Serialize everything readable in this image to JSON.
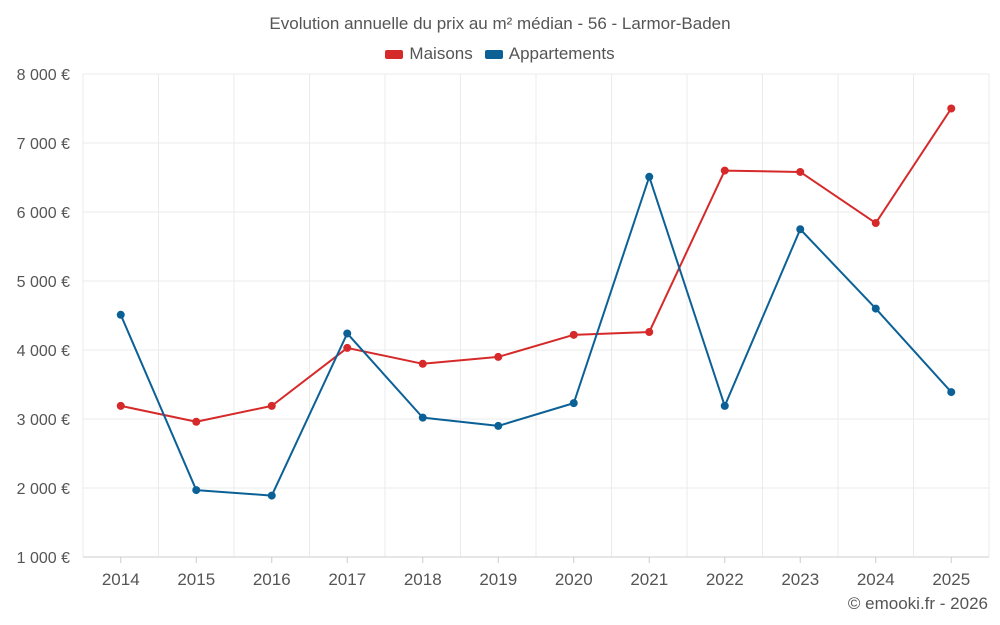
{
  "chart_data": {
    "type": "line",
    "title": "Evolution annuelle du prix au m² médian - 56 - Larmor-Baden",
    "categories": [
      "2014",
      "2015",
      "2016",
      "2017",
      "2018",
      "2019",
      "2020",
      "2021",
      "2022",
      "2023",
      "2024",
      "2025"
    ],
    "series": [
      {
        "name": "Maisons",
        "color": "#d62a2a",
        "values": [
          3190,
          2960,
          3190,
          4030,
          3800,
          3900,
          4220,
          4260,
          6600,
          6580,
          5840,
          7500
        ]
      },
      {
        "name": "Appartements",
        "color": "#0b6196",
        "values": [
          4510,
          1970,
          1890,
          4240,
          3020,
          2900,
          3230,
          6510,
          3190,
          5750,
          4600,
          3390
        ]
      }
    ],
    "ylim": [
      1000,
      8000
    ],
    "yticks": [
      1000,
      2000,
      3000,
      4000,
      5000,
      6000,
      7000,
      8000
    ],
    "ytick_labels": [
      "1 000 €",
      "2 000 €",
      "3 000 €",
      "4 000 €",
      "5 000 €",
      "6 000 €",
      "7 000 €",
      "8 000 €"
    ],
    "grid": true,
    "legend_position": "top-center",
    "xlabel": "",
    "ylabel": ""
  },
  "credit": "© emooki.fr - 2026"
}
